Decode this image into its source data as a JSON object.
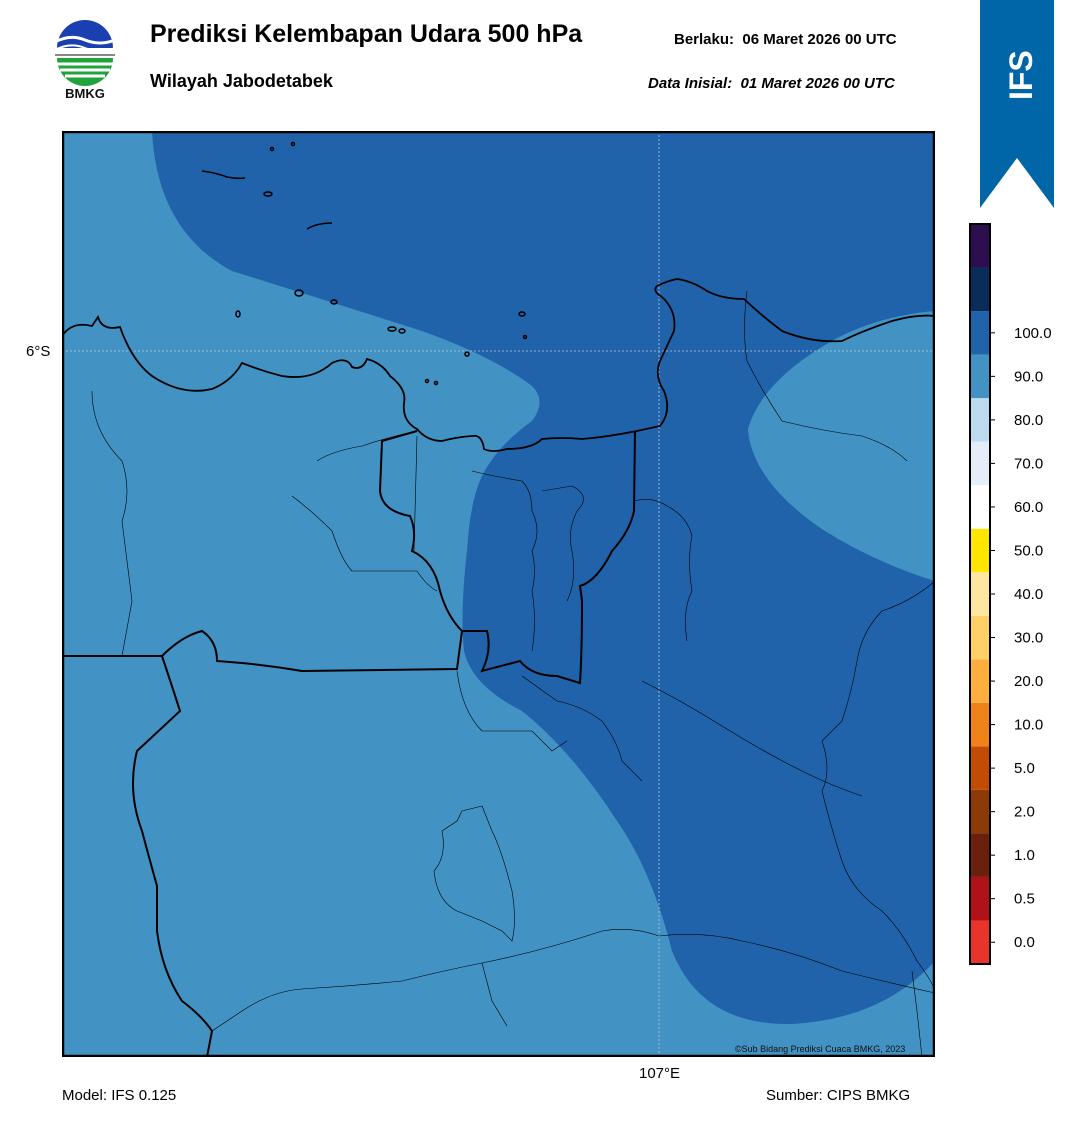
{
  "header": {
    "title": "Prediksi Kelembapan Udara 500 hPa",
    "subtitle": "Wilayah Jabodetabek",
    "valid_label": "Berlaku:",
    "valid_time": "06 Maret 2026 00 UTC",
    "initial_label": "Data Inisial:",
    "initial_time": "01 Maret 2026 00 UTC"
  },
  "logo": {
    "text": "BMKG",
    "icon": "bmkg-logo-icon"
  },
  "ribbon": {
    "text": "IFS",
    "color": "#0066a8"
  },
  "map": {
    "lat_label": "6°S",
    "lon_label": "107°E",
    "copyright": "©Sub Bidang Prediksi Cuaca BMKG, 2023",
    "fill_colors": {
      "70-80": "#4292c4",
      "80-90": "#2163aa"
    }
  },
  "footer": {
    "model": "Model: IFS 0.125",
    "source": "Sumber: CIPS BMKG"
  },
  "colorbar": {
    "colors": [
      "#e8352b",
      "#b01217",
      "#6b1f0d",
      "#8b3a08",
      "#c24c04",
      "#ef8218",
      "#fdae3f",
      "#ffd068",
      "#ffe6a0",
      "#ffe500",
      "#ffffff",
      "#e4eef8",
      "#bddbef",
      "#4292c4",
      "#2163aa",
      "#092c58",
      "#2d0e4f"
    ],
    "labels": [
      "0.0",
      "0.5",
      "1.0",
      "2.0",
      "5.0",
      "10.0",
      "20.0",
      "30.0",
      "40.0",
      "50.0",
      "60.0",
      "70.0",
      "80.0",
      "90.0",
      "100.0"
    ]
  }
}
